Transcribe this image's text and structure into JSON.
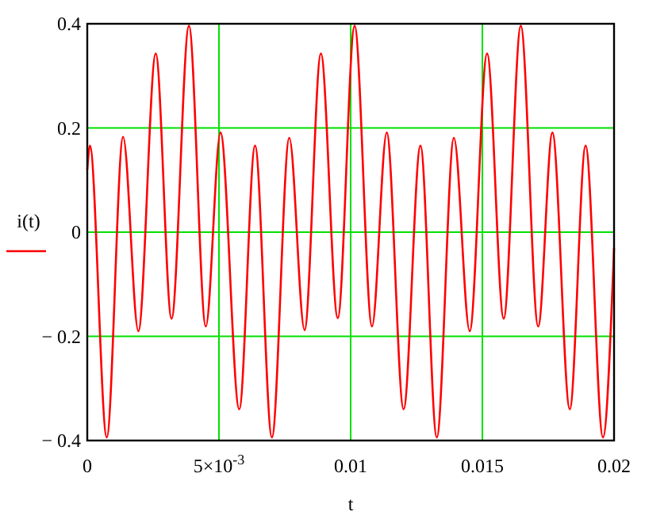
{
  "chart_data": {
    "type": "line",
    "xlabel": "t",
    "ylabel": "i(t)",
    "x": [
      0,
      0.0001,
      0.00074,
      0.00136,
      0.00194,
      0.0026,
      0.0032,
      0.00386,
      0.0045,
      0.00506,
      0.00577,
      0.00637,
      0.00701,
      0.00767,
      0.00825,
      0.00887,
      0.00951,
      0.01015,
      0.01081,
      0.01137,
      0.01201,
      0.01265,
      0.01327,
      0.01392,
      0.01452,
      0.01518,
      0.01581,
      0.01646,
      0.01712,
      0.01766,
      0.01832,
      0.01892,
      0.01958,
      0.02
    ],
    "series": [
      {
        "color": "#ff0000",
        "values": [
          0.12,
          0.166,
          -0.394,
          0.183,
          -0.19,
          0.343,
          -0.166,
          0.396,
          -0.181,
          0.191,
          -0.34,
          0.166,
          -0.394,
          0.181,
          -0.188,
          0.343,
          -0.165,
          0.396,
          -0.181,
          0.191,
          -0.34,
          0.166,
          -0.394,
          0.181,
          -0.19,
          0.343,
          -0.166,
          0.396,
          -0.181,
          0.191,
          -0.34,
          0.166,
          -0.394,
          -0.03
        ]
      }
    ],
    "xlim": [
      0,
      0.02
    ],
    "ylim": [
      -0.4,
      0.4
    ],
    "xticks": [
      0,
      {
        "value": 0.005,
        "label": "5×10$^{-3}$"
      },
      0.01,
      0.015,
      0.02
    ],
    "yticks": [
      {
        "value": -0.4,
        "label": "− 0.4"
      },
      {
        "value": -0.2,
        "label": "− 0.2"
      },
      0,
      0.2,
      0.4
    ],
    "grid": true,
    "line_style": "solid",
    "marker": "none"
  }
}
